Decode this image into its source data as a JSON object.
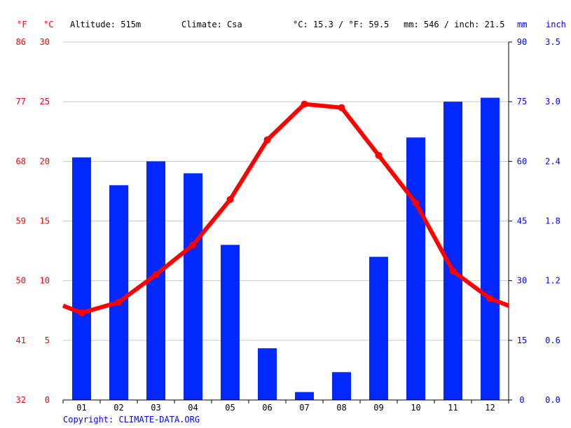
{
  "header": {
    "unit_f": "°F",
    "unit_c": "°C",
    "altitude": "Altitude: 515m",
    "climate": "Climate: Csa",
    "temp_avg": "°C: 15.3 / °F: 59.5",
    "precip_avg": "mm: 546 / inch: 21.5",
    "unit_mm": "mm",
    "unit_inch": "inch"
  },
  "footer": {
    "copyright": "Copyright: CLIMATE-DATA.ORG"
  },
  "colors": {
    "temperature": "#ff0000",
    "precipitation": "#0028ff",
    "grid": "#c8c8c8",
    "axis_text_left": "#ff0000",
    "axis_text_right": "#0000ff"
  },
  "chart_data": {
    "type": "bar",
    "categories": [
      "01",
      "02",
      "03",
      "04",
      "05",
      "06",
      "07",
      "08",
      "09",
      "10",
      "11",
      "12"
    ],
    "series": [
      {
        "kind": "bar",
        "axis": "mm",
        "values": [
          61,
          54,
          60,
          57,
          39,
          13,
          2,
          7,
          36,
          66,
          75,
          76
        ]
      },
      {
        "kind": "line",
        "axis": "celsius",
        "values": [
          7.3,
          8.2,
          10.5,
          13.0,
          16.8,
          21.8,
          24.8,
          24.5,
          20.5,
          16.5,
          10.8,
          8.5
        ]
      }
    ],
    "line_start_value": 7.9,
    "line_end_value": 7.9,
    "axes": {
      "celsius": {
        "ylim": [
          0,
          30
        ],
        "ticks": [
          "0",
          "5",
          "10",
          "15",
          "20",
          "25",
          "30"
        ]
      },
      "fahrenheit": {
        "ticks": [
          "32",
          "41",
          "50",
          "59",
          "68",
          "77",
          "86"
        ]
      },
      "mm": {
        "ylim": [
          0,
          90
        ],
        "ticks": [
          "0",
          "15",
          "30",
          "45",
          "60",
          "75",
          "90"
        ]
      },
      "inch": {
        "ticks": [
          "0.0",
          "0.6",
          "1.2",
          "1.8",
          "2.4",
          "3.0",
          "3.5"
        ]
      }
    },
    "grid": true
  }
}
